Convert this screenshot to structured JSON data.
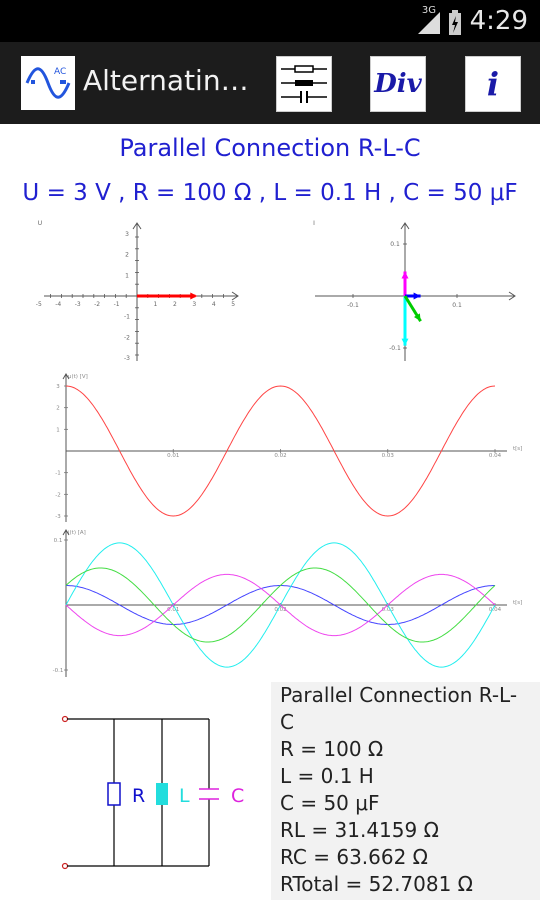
{
  "status_bar": {
    "network": "3G",
    "time": "4:29"
  },
  "app_bar": {
    "title": "Alternatin…",
    "icon_label": "AC",
    "buttons": [
      {
        "name": "circuit-settings-button",
        "label": ""
      },
      {
        "name": "div-button",
        "label": "Div"
      },
      {
        "name": "info-button",
        "label": "i"
      }
    ]
  },
  "heading": {
    "title": "Parallel Connection R-L-C",
    "params": "U = 3 V , R = 100 Ω , L = 0.1 H , C = 50 μF"
  },
  "voltage_phasor": {
    "axis_label": "U",
    "x_ticks": [
      "-5",
      "-4",
      "-3",
      "-2",
      "-1",
      "1",
      "2",
      "3",
      "4",
      "5"
    ],
    "y_ticks": [
      "3",
      "2",
      "1",
      "-1",
      "-2",
      "-3"
    ],
    "colors": {
      "voltage": "#ff0000"
    }
  },
  "current_phasor": {
    "axis_label": "I",
    "x_ticks": [
      "-0.1",
      "0.1"
    ],
    "y_ticks": [
      "0.1",
      "-0.1"
    ],
    "colors": {
      "resistor": "#0000ff",
      "inductor": "#00ffff",
      "capacitor": "#ff00ff",
      "total": "#00cc00"
    }
  },
  "chart_data": [
    {
      "type": "line",
      "ylabel": "u(t) [V]",
      "xlabel": "t[s]",
      "x_ticks": [
        "0.01",
        "0.02",
        "0.03",
        "0.04"
      ],
      "y_ticks": [
        "3",
        "2",
        "1",
        "-1",
        "-2",
        "-3"
      ],
      "ylim": [
        -3,
        3
      ],
      "xlim": [
        0,
        0.04
      ],
      "series": [
        {
          "amplitude": 3,
          "phase_deg": 90,
          "frequency": 50,
          "color": "#ff4444"
        }
      ]
    },
    {
      "type": "line",
      "ylabel": "i(t) [A]",
      "xlabel": "t[s]",
      "x_ticks": [
        "0.01",
        "0.02",
        "0.03",
        "0.04"
      ],
      "y_ticks": [
        "0.1",
        "-0.1"
      ],
      "ylim": [
        -0.1,
        0.1
      ],
      "xlim": [
        0,
        0.04
      ],
      "series": [
        {
          "amplitude": 0.03,
          "phase_deg": 90,
          "frequency": 50,
          "color": "#4444ff"
        },
        {
          "amplitude": 0.0955,
          "phase_deg": 0,
          "frequency": 50,
          "color": "#22eeee"
        },
        {
          "amplitude": 0.0471,
          "phase_deg": 180,
          "frequency": 50,
          "color": "#ee44ee"
        },
        {
          "amplitude": 0.057,
          "phase_deg": 32,
          "frequency": 50,
          "color": "#44dd44"
        }
      ]
    }
  ],
  "circuit": {
    "labels": {
      "r": "R",
      "l": "L",
      "c": "C"
    }
  },
  "info_panel": {
    "lines": [
      "Parallel Connection R-L-",
      "C",
      "R = 100 Ω",
      "L = 0.1 H",
      "C = 50 μF",
      "RL = 31.4159 Ω",
      "RC = 63.662 Ω",
      "RTotal = 52.7081 Ω"
    ]
  }
}
